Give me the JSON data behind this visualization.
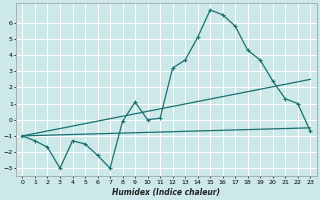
{
  "title": "",
  "xlabel": "Humidex (Indice chaleur)",
  "ylabel": "",
  "background_color": "#cce8e8",
  "grid_color": "#ffffff",
  "line_color": "#1a7070",
  "xlim": [
    -0.5,
    23.5
  ],
  "ylim": [
    -3.5,
    7.2
  ],
  "yticks": [
    -3,
    -2,
    -1,
    0,
    1,
    2,
    3,
    4,
    5,
    6
  ],
  "xticks": [
    0,
    1,
    2,
    3,
    4,
    5,
    6,
    7,
    8,
    9,
    10,
    11,
    12,
    13,
    14,
    15,
    16,
    17,
    18,
    19,
    20,
    21,
    22,
    23
  ],
  "curve1_x": [
    0,
    1,
    2,
    3,
    4,
    5,
    6,
    7,
    8,
    9,
    10,
    11,
    12,
    13,
    14,
    15,
    16,
    17,
    18,
    19,
    20,
    21,
    22,
    23
  ],
  "curve1_y": [
    -1.0,
    -1.3,
    -1.7,
    -3.0,
    -1.3,
    -1.5,
    -2.2,
    -3.0,
    -0.1,
    1.1,
    0.0,
    0.1,
    3.2,
    3.7,
    5.1,
    6.8,
    6.5,
    5.8,
    4.3,
    3.7,
    2.4,
    1.3,
    1.0,
    -0.7
  ],
  "line1_x": [
    0,
    23
  ],
  "line1_y": [
    -1.0,
    2.5
  ],
  "line2_x": [
    0,
    23
  ],
  "line2_y": [
    -1.0,
    -0.5
  ]
}
